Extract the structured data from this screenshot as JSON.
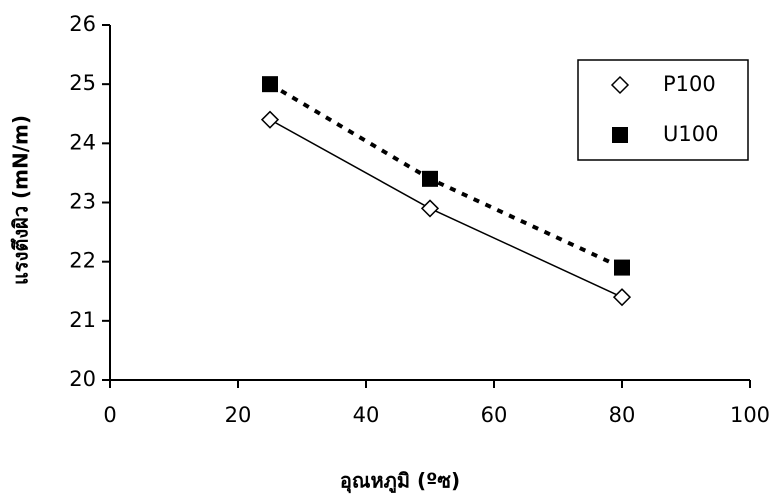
{
  "chart_data": {
    "type": "line",
    "xlabel": "อุณหภูมิ (ºซ)",
    "ylabel": "แรงตึงผิว (mN/m)",
    "x": [
      25,
      50,
      80
    ],
    "series": [
      {
        "name": "P100",
        "color": "#000000",
        "marker": "diamond",
        "dash": "solid",
        "values": [
          24.4,
          22.9,
          21.4
        ]
      },
      {
        "name": "U100",
        "color": "#000000",
        "marker": "square",
        "dash": "dotted",
        "values": [
          25.0,
          23.4,
          21.9
        ]
      }
    ],
    "xlim": [
      0,
      100
    ],
    "xticks": [
      0,
      20,
      40,
      60,
      80,
      100
    ],
    "ylim": [
      20,
      26
    ],
    "yticks": [
      20,
      21,
      22,
      23,
      24,
      25,
      26
    ],
    "grid": false,
    "legend": "upper right"
  }
}
